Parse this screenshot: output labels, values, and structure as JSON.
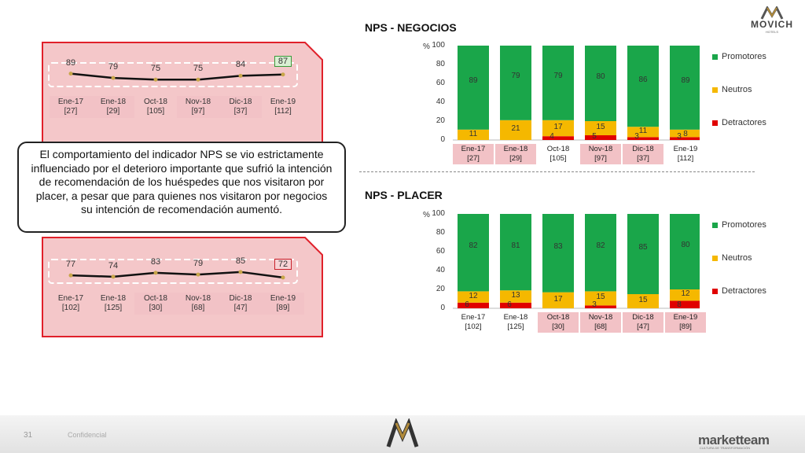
{
  "brand": {
    "name": "MOVICH",
    "sub": "HOTELS"
  },
  "note": "El comportamiento del indicador NPS se vio estrictamente influenciado por el deterioro importante que sufrió la intención de recomendación de los huéspedes que nos visitaron por placer, a pesar que para quienes nos visitaron por negocios su intención de recomendación aumentó.",
  "trend_negocios": {
    "values": [
      "89",
      "79",
      "75",
      "75",
      "84",
      "87"
    ],
    "categories": [
      "Ene-17",
      "Ene-18",
      "Oct-18",
      "Nov-18",
      "Dic-18",
      "Ene-19"
    ],
    "counts": [
      "[27]",
      "[29]",
      "[105]",
      "[97]",
      "[37]",
      "[112]"
    ],
    "highlight_value": "87"
  },
  "trend_placer": {
    "values": [
      "77",
      "74",
      "83",
      "79",
      "85",
      "72"
    ],
    "categories": [
      "Ene-17",
      "Ene-18",
      "Oct-18",
      "Nov-18",
      "Dic-18",
      "Ene-19"
    ],
    "counts": [
      "[102]",
      "[125]",
      "[30]",
      "[68]",
      "[47]",
      "[89]"
    ],
    "highlight_value": "72"
  },
  "chart_data": [
    {
      "type": "bar",
      "title": "NPS - NEGOCIOS",
      "ylabel": "%",
      "ylim": [
        0,
        100
      ],
      "yticks": [
        "0",
        "20",
        "40",
        "60",
        "80",
        "100"
      ],
      "categories": [
        "Ene-17",
        "Ene-18",
        "Oct-18",
        "Nov-18",
        "Dic-18",
        "Ene-19"
      ],
      "counts": [
        "[27]",
        "[29]",
        "[105]",
        "[97]",
        "[37]",
        "[112]"
      ],
      "series": [
        {
          "name": "Detractores",
          "color": "#e00000",
          "values": [
            0,
            0,
            4,
            5,
            3,
            3
          ]
        },
        {
          "name": "Neutros",
          "color": "#f5b800",
          "values": [
            11,
            21,
            17,
            15,
            11,
            8
          ]
        },
        {
          "name": "Promotores",
          "color": "#1aa64a",
          "values": [
            89,
            79,
            79,
            80,
            86,
            89
          ]
        }
      ],
      "legend": "right"
    },
    {
      "type": "bar",
      "title": "NPS - PLACER",
      "ylabel": "%",
      "ylim": [
        0,
        100
      ],
      "yticks": [
        "0",
        "20",
        "40",
        "60",
        "80",
        "100"
      ],
      "categories": [
        "Ene-17",
        "Ene-18",
        "Oct-18",
        "Nov-18",
        "Dic-18",
        "Ene-19"
      ],
      "counts": [
        "[102]",
        "[125]",
        "[30]",
        "[68]",
        "[47]",
        "[89]"
      ],
      "series": [
        {
          "name": "Detractores",
          "color": "#e00000",
          "values": [
            6,
            6,
            0,
            3,
            0,
            8
          ]
        },
        {
          "name": "Neutros",
          "color": "#f5b800",
          "values": [
            12,
            13,
            17,
            15,
            15,
            12
          ]
        },
        {
          "name": "Promotores",
          "color": "#1aa64a",
          "values": [
            82,
            81,
            83,
            82,
            85,
            80
          ]
        }
      ],
      "legend": "right"
    }
  ],
  "footer": {
    "page": "31",
    "confidential": "Confidencial",
    "company": "marketteam",
    "company_sub": "CULTURA DE TRANSFORMACIÓN"
  },
  "colors": {
    "panel_bg": "#f4c7c9",
    "panel_border": "#e0202a",
    "highlight_good": "#3a9a3a",
    "highlight_bad": "#c8202a"
  }
}
